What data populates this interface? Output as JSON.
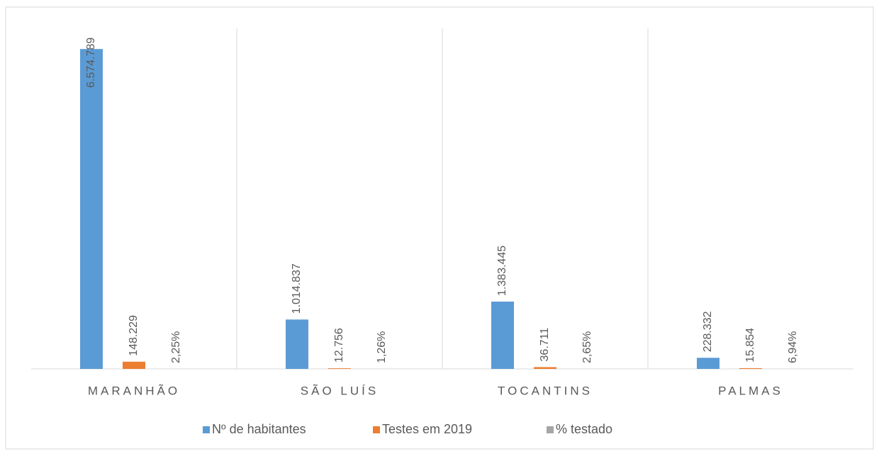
{
  "chart_data": {
    "type": "bar",
    "categories": [
      "MARANHÃO",
      "SÃO LUÍS",
      "TOCANTINS",
      "PALMAS"
    ],
    "series": [
      {
        "name": "Nº de habitantes",
        "color": "#5b9bd5",
        "values": [
          6574789,
          1014837,
          1383445,
          228332
        ],
        "value_labels": [
          "6.574.789",
          "1.014.837",
          "1.383.445",
          "228.332"
        ]
      },
      {
        "name": "Testes em 2019",
        "color": "#ed7d31",
        "values": [
          148229,
          12756,
          36711,
          15854
        ],
        "value_labels": [
          "148.229",
          "12.756",
          "36.711",
          "15.854"
        ]
      },
      {
        "name": "% testado",
        "color": "#a5a5a5",
        "values": [
          2.25,
          1.26,
          2.65,
          6.94
        ],
        "value_labels": [
          "2,25%",
          "1,26%",
          "2,65%",
          "6,94%"
        ]
      }
    ],
    "ylim": [
      0,
      7000000
    ],
    "legend": "bottom"
  }
}
